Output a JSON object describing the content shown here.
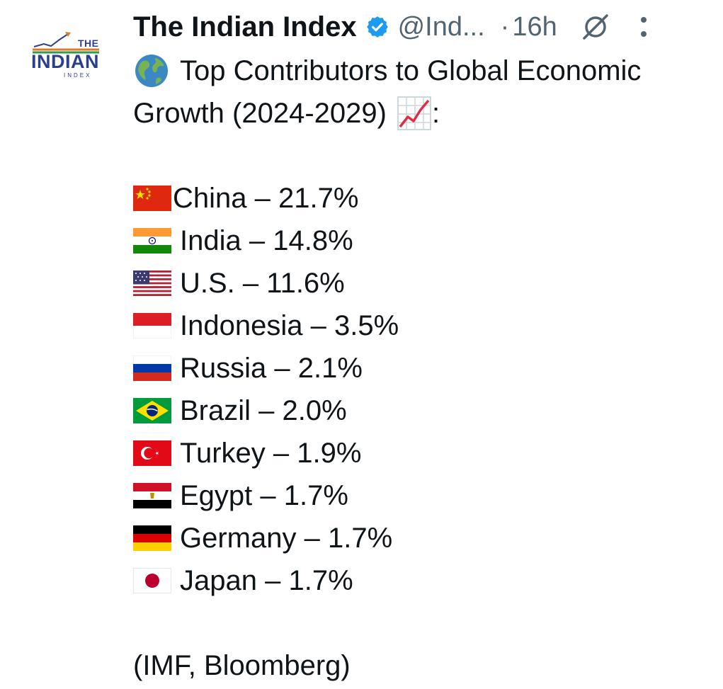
{
  "account": {
    "logo_text_top": "THE",
    "logo_text_main": "INDIAN",
    "logo_text_bottom": "INDEX",
    "name": "The Indian Index",
    "handle": "@Ind...",
    "separator": "·",
    "time": "16h",
    "verified_color": "#1d9bf0"
  },
  "tweet": {
    "title_line1": "Top Contributors to Global Economic",
    "title_line2": "Growth (2024-2029)",
    "title_suffix": ":",
    "source": "(IMF, Bloomberg)",
    "items": [
      {
        "country": "China",
        "value": "21.7%",
        "flag": "china-flag-icon"
      },
      {
        "country": "India",
        "value": "14.8%",
        "flag": "india-flag-icon"
      },
      {
        "country": "U.S.",
        "value": "11.6%",
        "flag": "usa-flag-icon"
      },
      {
        "country": "Indonesia",
        "value": "3.5%",
        "flag": "indonesia-flag-icon"
      },
      {
        "country": "Russia",
        "value": "2.1%",
        "flag": "russia-flag-icon"
      },
      {
        "country": "Brazil",
        "value": "2.0%",
        "flag": "brazil-flag-icon"
      },
      {
        "country": "Turkey",
        "value": "1.9%",
        "flag": "turkey-flag-icon"
      },
      {
        "country": "Egypt",
        "value": "1.7%",
        "flag": "egypt-flag-icon"
      },
      {
        "country": "Germany",
        "value": "1.7%",
        "flag": "germany-flag-icon"
      },
      {
        "country": "Japan",
        "value": "1.7%",
        "flag": "japan-flag-icon"
      }
    ],
    "dash": "–"
  }
}
